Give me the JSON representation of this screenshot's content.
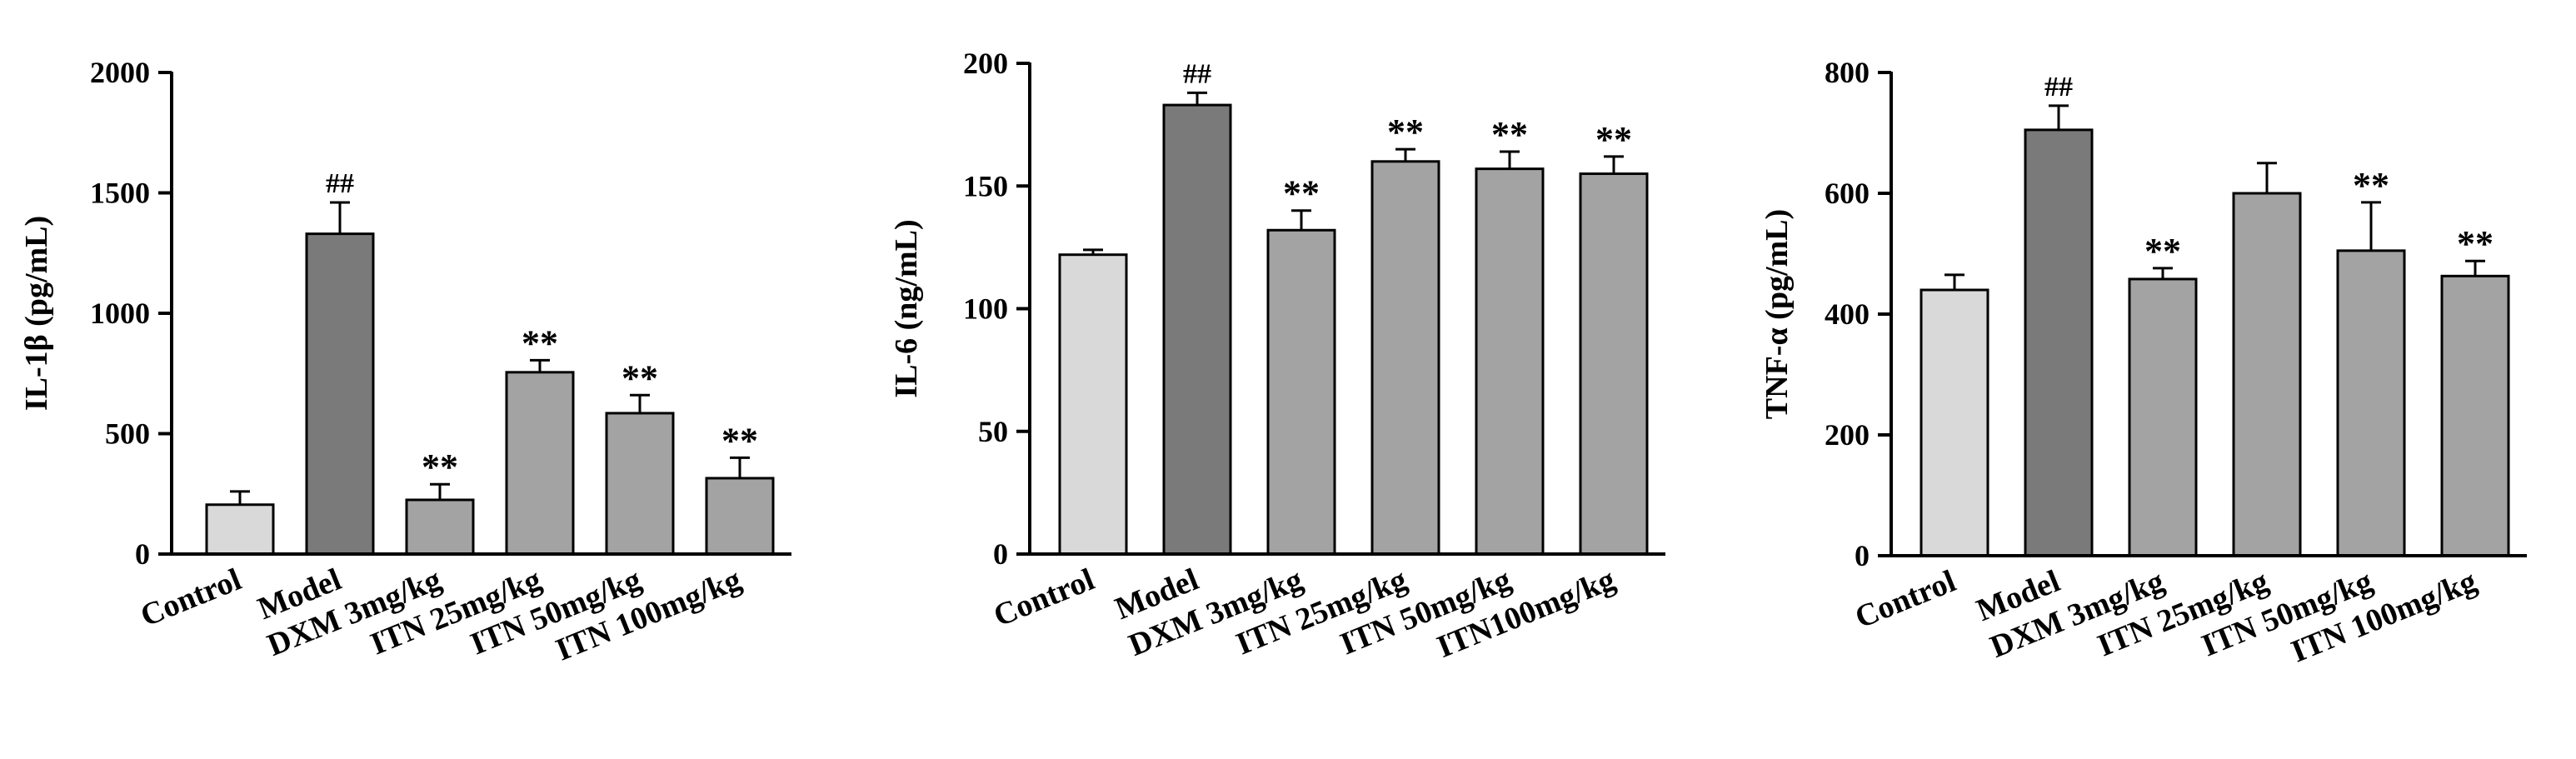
{
  "chart_data": [
    {
      "type": "bar",
      "ylabel": "IL-1β (pg/mL)",
      "ylim": [
        0,
        2000
      ],
      "yticks": [
        "0",
        "500",
        "1000",
        "1500",
        "2000"
      ],
      "categories": [
        "Control",
        "Model",
        "DXM 3mg/kg",
        "ITN 25mg/kg",
        "ITN 50mg/kg",
        "ITN 100mg/kg"
      ],
      "values": [
        205,
        1330,
        225,
        755,
        585,
        315
      ],
      "errors": [
        55,
        130,
        65,
        50,
        75,
        85
      ],
      "annotations": [
        "",
        "##",
        "**",
        "**",
        "**",
        "**"
      ],
      "bar_colors": [
        "#d9d9d9",
        "#7a7a7a",
        "#a3a3a3",
        "#a3a3a3",
        "#a3a3a3",
        "#a3a3a3"
      ]
    },
    {
      "type": "bar",
      "ylabel": "IL-6 (ng/mL)",
      "ylim": [
        0,
        200
      ],
      "yticks": [
        "0",
        "50",
        "100",
        "150",
        "200"
      ],
      "categories": [
        "Control",
        "Model",
        "DXM 3mg/kg",
        "ITN 25mg/kg",
        "ITN 50mg/kg",
        "ITN100mg/kg"
      ],
      "values": [
        122,
        183,
        132,
        160,
        157,
        155
      ],
      "errors": [
        2,
        5,
        8,
        5,
        7,
        7
      ],
      "annotations": [
        "",
        "##",
        "**",
        "**",
        "**",
        "**"
      ],
      "bar_colors": [
        "#d9d9d9",
        "#7a7a7a",
        "#a3a3a3",
        "#a3a3a3",
        "#a3a3a3",
        "#a3a3a3"
      ]
    },
    {
      "type": "bar",
      "ylabel": "TNF-α (pg/mL)",
      "ylim": [
        0,
        800
      ],
      "yticks": [
        "0",
        "200",
        "400",
        "600",
        "800"
      ],
      "categories": [
        "Control",
        "Model",
        "DXM 3mg/kg",
        "ITN 25mg/kg",
        "ITN 50mg/kg",
        "ITN 100mg/kg"
      ],
      "values": [
        440,
        705,
        458,
        600,
        505,
        463
      ],
      "errors": [
        25,
        40,
        18,
        50,
        80,
        25
      ],
      "annotations": [
        "",
        "##",
        "**",
        "",
        "**",
        "**"
      ],
      "bar_colors": [
        "#d9d9d9",
        "#7a7a7a",
        "#a3a3a3",
        "#a3a3a3",
        "#a3a3a3",
        "#a3a3a3"
      ]
    }
  ]
}
